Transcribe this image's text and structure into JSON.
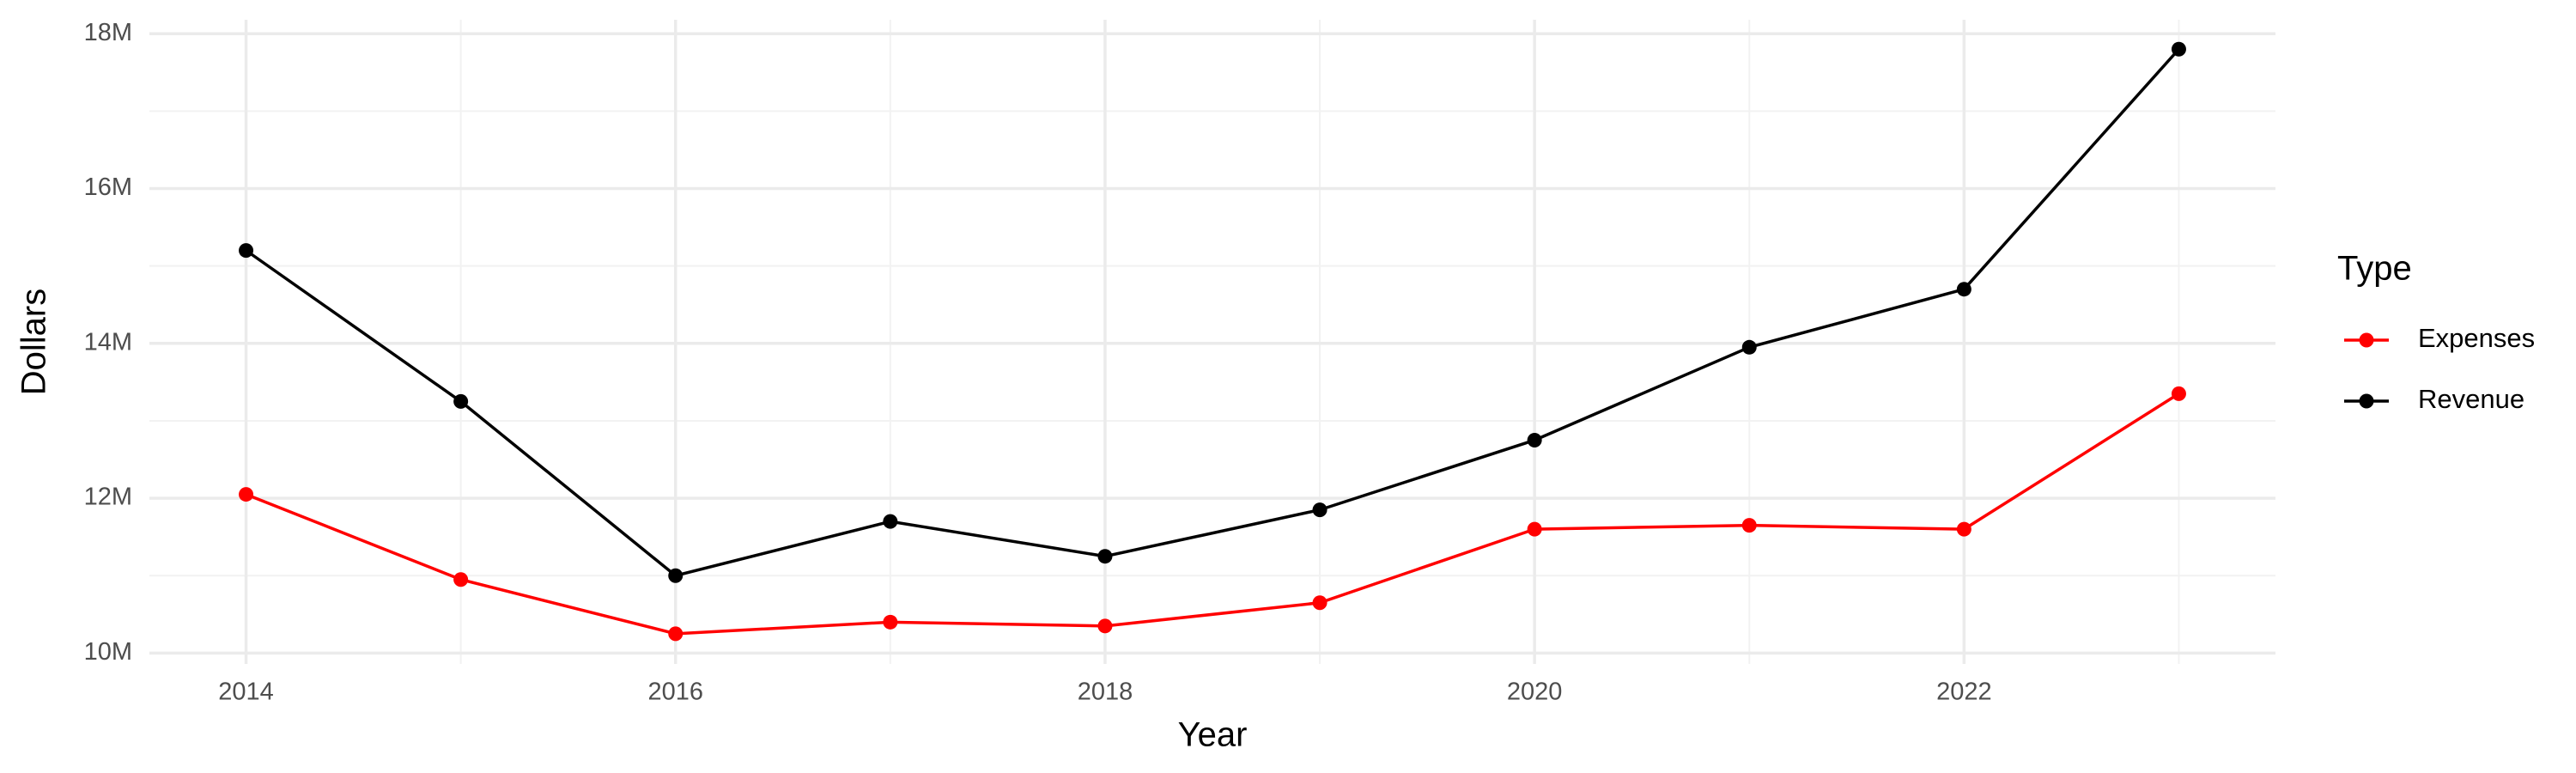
{
  "chart_data": {
    "type": "line",
    "x_label": "Year",
    "y_label": "Dollars",
    "legend_title": "Type",
    "legend_position": "right",
    "grid": true,
    "x": [
      2014,
      2015,
      2016,
      2017,
      2018,
      2019,
      2020,
      2021,
      2022,
      2023
    ],
    "series": [
      {
        "name": "Expenses",
        "color": "#ff0000",
        "values": [
          12050000,
          10950000,
          10250000,
          10400000,
          10350000,
          10650000,
          11600000,
          11650000,
          11600000,
          13350000
        ]
      },
      {
        "name": "Revenue",
        "color": "#000000",
        "values": [
          15200000,
          13250000,
          11000000,
          11700000,
          11250000,
          11850000,
          12750000,
          13950000,
          14700000,
          17800000
        ]
      }
    ],
    "xlim": [
      2013.55,
      2023.45
    ],
    "xticks": [
      2014,
      2016,
      2018,
      2020,
      2022
    ],
    "ylim": [
      9860000,
      18180000
    ],
    "yticks": [
      {
        "value": 10000000,
        "label": "10M"
      },
      {
        "value": 12000000,
        "label": "12M"
      },
      {
        "value": 14000000,
        "label": "14M"
      },
      {
        "value": 16000000,
        "label": "16M"
      },
      {
        "value": 18000000,
        "label": "18M"
      }
    ]
  }
}
